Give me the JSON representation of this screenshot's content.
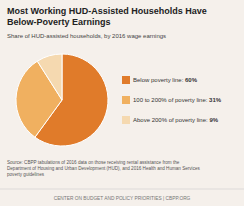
{
  "chart_data": {
    "type": "pie",
    "title": "Most Working HUD-Assisted Households Have\nBelow-Poverty Earnings",
    "subtitle": "Share of HUD-assisted households, by 2016 wage earnings",
    "categories": [
      "Below poverty line: ",
      "100 to 200% of poverty line: ",
      "Above 200% of poverty line: "
    ],
    "values": [
      60,
      31,
      9
    ],
    "value_labels": [
      "60%",
      "31%",
      "9%"
    ],
    "colors": [
      "#E07B2A",
      "#F0B060",
      "#F5D9B0"
    ],
    "source": "Source: CBPP tabulations of 2016 data on those receiving rental assistance from the\nDepartment of Housing and Urban Development (HUD), and 2016 Health and Human Services\npoverty guidelines",
    "footer": "CENTER ON BUDGET AND POLICY PRIORITIES | CBPP.ORG"
  }
}
